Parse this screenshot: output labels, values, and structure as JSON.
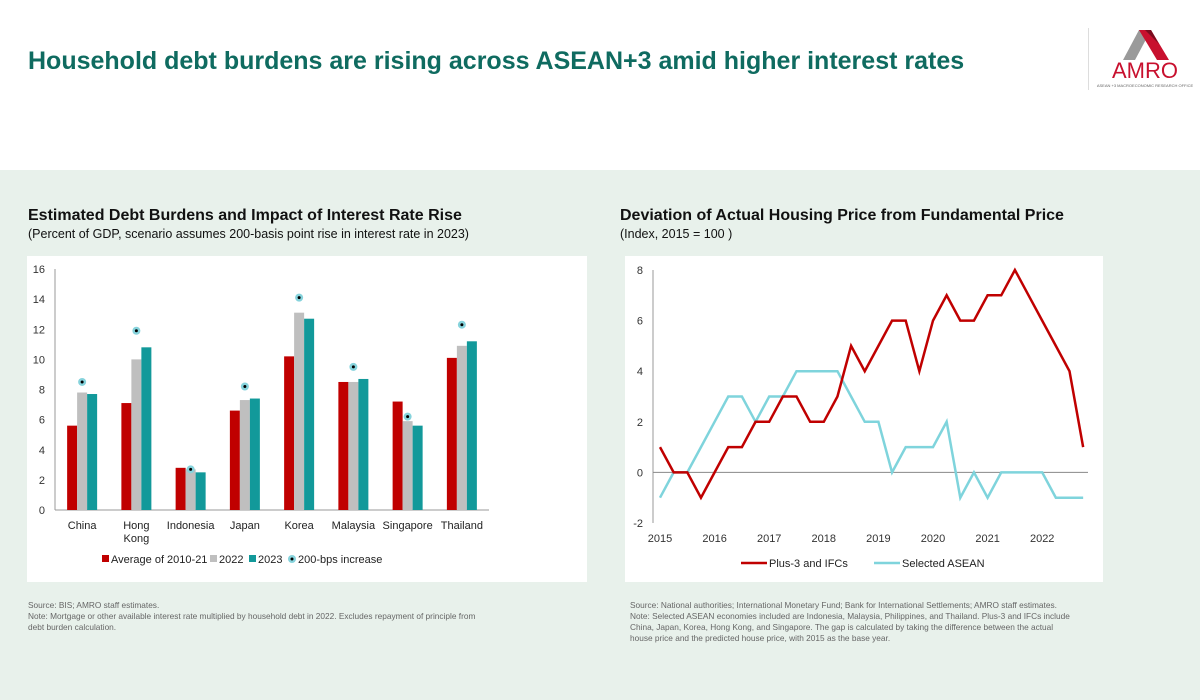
{
  "header": {
    "title": "Household debt burdens are rising across ASEAN+3 amid higher interest rates",
    "logo_text": "AMRO",
    "logo_subtext": "ASEAN+3 MACROECONOMIC RESEARCH OFFICE"
  },
  "left": {
    "title": "Estimated Debt Burdens and Impact of Interest Rate Rise",
    "subtitle": "(Percent of GDP, scenario assumes 200-basis point rise in interest rate in 2023)",
    "source": "Source: BIS; AMRO staff estimates.",
    "note": "Note: Mortgage or other available interest rate multiplied by household debt in 2022. Excludes repayment of principle from debt burden calculation."
  },
  "right": {
    "title": "Deviation of Actual Housing Price from Fundamental Price",
    "subtitle": "(Index, 2015 = 100 )",
    "source": "Source: National authorities; International Monetary Fund; Bank for International Settlements; AMRO staff estimates.",
    "note": "Note: Selected ASEAN economies included are Indonesia, Malaysia, Philippines, and Thailand. Plus-3 and IFCs include China, Japan, Korea, Hong Kong, and Singapore. The gap is calculated by taking the difference between the actual house price and the predicted house price, with 2015 as the base year."
  },
  "chart_data": [
    {
      "type": "bar",
      "title": "Estimated Debt Burdens and Impact of Interest Rate Rise",
      "ylim": [
        0,
        16
      ],
      "yticks": [
        "0",
        "2",
        "4",
        "6",
        "8",
        "10",
        "12",
        "14",
        "16"
      ],
      "categories": [
        "China",
        "Hong Kong",
        "Indonesia",
        "Japan",
        "Korea",
        "Malaysia",
        "Singapore",
        "Thailand"
      ],
      "series": [
        {
          "name": "Average of 2010-21",
          "color": "#c00000",
          "values": [
            5.6,
            7.1,
            2.8,
            6.6,
            10.2,
            8.5,
            7.2,
            10.1
          ]
        },
        {
          "name": "2022",
          "color": "#bfbfbf",
          "values": [
            7.8,
            10.0,
            2.7,
            7.3,
            13.1,
            8.5,
            5.9,
            10.9
          ]
        },
        {
          "name": "2023",
          "color": "#12999a",
          "values": [
            7.7,
            10.8,
            2.5,
            7.4,
            12.7,
            8.7,
            5.6,
            11.2
          ]
        },
        {
          "name": "200-bps increase",
          "color": "#86d3dc",
          "values": [
            8.5,
            11.9,
            2.7,
            8.2,
            14.1,
            9.5,
            6.2,
            12.3
          ]
        }
      ],
      "legend": "bottom"
    },
    {
      "type": "line",
      "title": "Deviation of Actual Housing Price from Fundamental Price",
      "ylim": [
        -2,
        8
      ],
      "yticks": [
        "-2",
        "0",
        "2",
        "4",
        "6",
        "8"
      ],
      "xticks": [
        "2015",
        "2016",
        "2017",
        "2018",
        "2019",
        "2020",
        "2021",
        "2022"
      ],
      "x_frequency": "quarterly",
      "x_start": "2015Q1",
      "series": [
        {
          "name": "Plus-3 and IFCs",
          "color": "#c00000",
          "values": [
            1,
            0,
            0,
            -1,
            0,
            1,
            1,
            2,
            2,
            3,
            3,
            2,
            2,
            3,
            5,
            4,
            5,
            6,
            6,
            4,
            6,
            7,
            6,
            6,
            7,
            7,
            8,
            7,
            6,
            5,
            4,
            1
          ]
        },
        {
          "name": "Selected ASEAN",
          "color": "#7fd4dc",
          "values": [
            -1,
            0,
            0,
            1,
            2,
            3,
            3,
            2,
            3,
            3,
            4,
            4,
            4,
            4,
            3,
            2,
            2,
            0,
            1,
            1,
            1,
            2,
            -1,
            0,
            -1,
            0,
            0,
            0,
            0,
            -1,
            -1,
            -1
          ]
        }
      ],
      "legend": "bottom"
    }
  ]
}
